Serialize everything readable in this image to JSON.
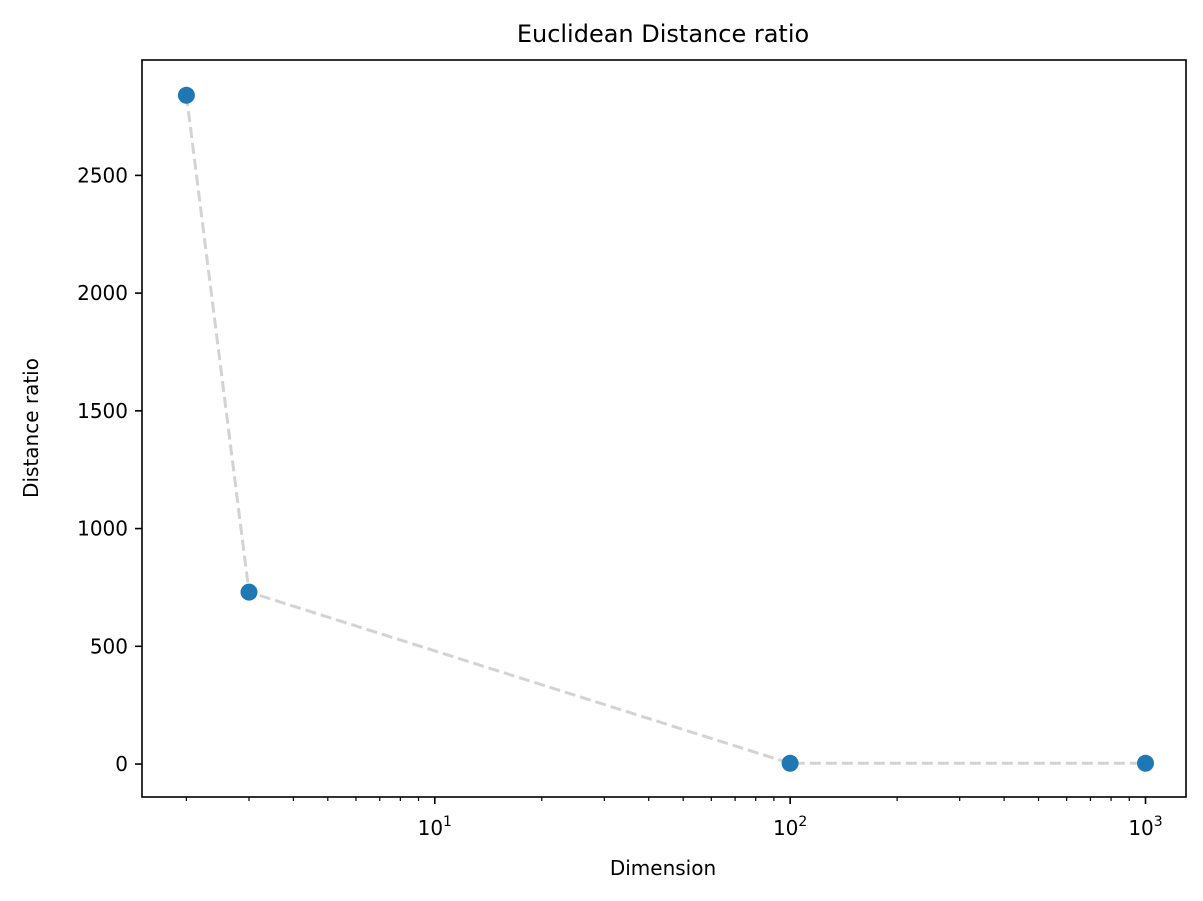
{
  "chart_data": {
    "type": "scatter",
    "title": "Euclidean Distance ratio",
    "xlabel": "Dimension",
    "ylabel": "Distance ratio",
    "xscale": "log",
    "xlim": [
      1.5,
      1300
    ],
    "ylim": [
      -140,
      2990
    ],
    "grid": false,
    "legend": "none",
    "x": [
      2,
      3,
      100,
      1000
    ],
    "y": [
      2840,
      730,
      3,
      3
    ],
    "marker_color": "#1f77b4",
    "line_color": "#d3d3d3",
    "line_style": "dashed",
    "yticks": [
      0,
      500,
      1000,
      1500,
      2000,
      2500
    ],
    "ytick_labels": [
      "0",
      "500",
      "1000",
      "1500",
      "2000",
      "2500"
    ],
    "xticks_major": [
      10,
      100,
      1000
    ],
    "xtick_labels": [
      {
        "base": "10",
        "exp": "1"
      },
      {
        "base": "10",
        "exp": "2"
      },
      {
        "base": "10",
        "exp": "3"
      }
    ]
  }
}
